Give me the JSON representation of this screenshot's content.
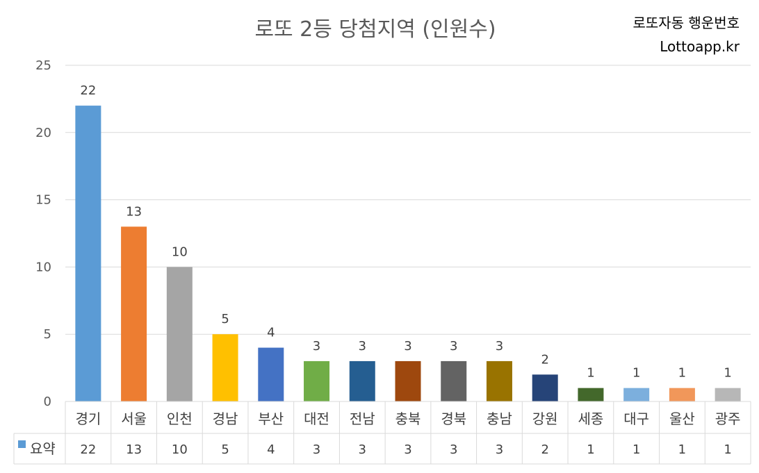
{
  "header": {
    "title": "로또 2등 당첨지역 (인원수)",
    "brand_line1": "로또자동 행운번호",
    "brand_line2": "Lottoapp.kr"
  },
  "chart_data": {
    "type": "bar",
    "title": "로또 2등 당첨지역 (인원수)",
    "categories": [
      "경기",
      "서울",
      "인천",
      "경남",
      "부산",
      "대전",
      "전남",
      "충북",
      "경북",
      "충남",
      "강원",
      "세종",
      "대구",
      "울산",
      "광주"
    ],
    "series": [
      {
        "name": "요약",
        "values": [
          22,
          13,
          10,
          5,
          4,
          3,
          3,
          3,
          3,
          3,
          2,
          1,
          1,
          1,
          1
        ]
      }
    ],
    "ylim": [
      0,
      25
    ],
    "yticks": [
      0,
      5,
      10,
      15,
      20,
      25
    ],
    "grid": true,
    "legend": "data-table-left",
    "xlabel": "",
    "ylabel": "",
    "data_table": true,
    "bar_colors": [
      "#5b9bd5",
      "#ed7d31",
      "#a5a5a5",
      "#ffc000",
      "#4472c4",
      "#70ad47",
      "#255e91",
      "#9e480e",
      "#636363",
      "#997300",
      "#264478",
      "#43682b",
      "#7cafdd",
      "#f1975a",
      "#b7b7b7"
    ],
    "legend_color": "#5b9bd5"
  }
}
